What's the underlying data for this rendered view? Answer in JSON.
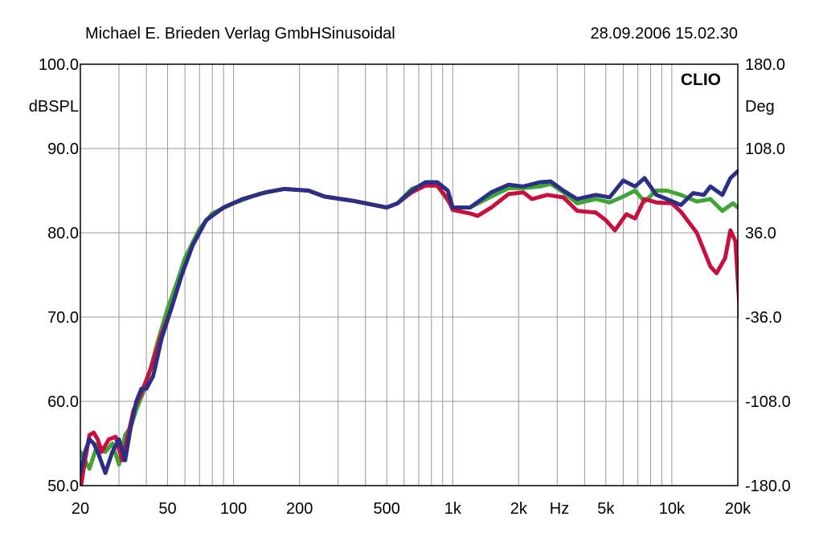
{
  "header": {
    "left": "Michael E. Brieden Verlag GmbHSinusoidal",
    "right": "28.09.2006 15.02.30"
  },
  "chart_data": {
    "type": "line",
    "brand_label": "CLIO",
    "x_scale": "log",
    "xlim": [
      20,
      20000
    ],
    "ylim": [
      50,
      100
    ],
    "y2lim": [
      -180,
      180
    ],
    "ylabel": "dBSPL",
    "y2label": "Deg",
    "xlabel": "Hz",
    "grid": true,
    "x_tick_labels": [
      {
        "v": 20,
        "t": "20"
      },
      {
        "v": 50,
        "t": "50"
      },
      {
        "v": 100,
        "t": "100"
      },
      {
        "v": 200,
        "t": "200"
      },
      {
        "v": 500,
        "t": "500"
      },
      {
        "v": 1000,
        "t": "1k"
      },
      {
        "v": 2000,
        "t": "2k"
      },
      {
        "v": 5000,
        "t": "5k"
      },
      {
        "v": 10000,
        "t": "10k"
      },
      {
        "v": 20000,
        "t": "20k"
      }
    ],
    "y_tick_labels": [
      {
        "v": 100,
        "t": "100.0"
      },
      {
        "v": 90,
        "t": "90.0"
      },
      {
        "v": 80,
        "t": "80.0"
      },
      {
        "v": 70,
        "t": "70.0"
      },
      {
        "v": 60,
        "t": "60.0"
      },
      {
        "v": 50,
        "t": "50.0"
      }
    ],
    "y2_tick_labels": [
      {
        "v": 180,
        "t": "180.0"
      },
      {
        "v": 108,
        "t": "108.0"
      },
      {
        "v": 36,
        "t": "36.0"
      },
      {
        "v": -36,
        "t": "-36.0"
      },
      {
        "v": -108,
        "t": "-108.0"
      },
      {
        "v": -180,
        "t": "-180.0"
      }
    ],
    "series": [
      {
        "color": "#3fa535",
        "points": [
          [
            20,
            54
          ],
          [
            22,
            52
          ],
          [
            24,
            55
          ],
          [
            26,
            54
          ],
          [
            28,
            55
          ],
          [
            30,
            52.5
          ],
          [
            32,
            56
          ],
          [
            34,
            57
          ],
          [
            36,
            59
          ],
          [
            40,
            62
          ],
          [
            45,
            67
          ],
          [
            50,
            71
          ],
          [
            55,
            74
          ],
          [
            60,
            77
          ],
          [
            70,
            80.5
          ],
          [
            80,
            82.3
          ],
          [
            100,
            83.5
          ],
          [
            130,
            84.6
          ],
          [
            170,
            85.2
          ],
          [
            220,
            85
          ],
          [
            260,
            84.3
          ],
          [
            350,
            83.8
          ],
          [
            500,
            83
          ],
          [
            560,
            83.5
          ],
          [
            650,
            85.2
          ],
          [
            750,
            85.8
          ],
          [
            850,
            85.6
          ],
          [
            1000,
            83
          ],
          [
            1200,
            83
          ],
          [
            1500,
            84.3
          ],
          [
            1800,
            85.3
          ],
          [
            2100,
            85.3
          ],
          [
            2500,
            85.5
          ],
          [
            2800,
            85.8
          ],
          [
            3200,
            84.8
          ],
          [
            3700,
            83.5
          ],
          [
            4500,
            84
          ],
          [
            5200,
            83.6
          ],
          [
            6000,
            84.3
          ],
          [
            6800,
            85
          ],
          [
            7500,
            83.7
          ],
          [
            8500,
            85
          ],
          [
            9500,
            85
          ],
          [
            11000,
            84.5
          ],
          [
            13000,
            83.7
          ],
          [
            15000,
            84
          ],
          [
            17000,
            82.6
          ],
          [
            19000,
            83.5
          ],
          [
            20000,
            83
          ]
        ]
      },
      {
        "color": "#c8103e",
        "points": [
          [
            20,
            49.5
          ],
          [
            21,
            53
          ],
          [
            22,
            56
          ],
          [
            23,
            56.3
          ],
          [
            24,
            55.5
          ],
          [
            25,
            54
          ],
          [
            27,
            55.5
          ],
          [
            29,
            55.8
          ],
          [
            31,
            53
          ],
          [
            33,
            56
          ],
          [
            35,
            59
          ],
          [
            38,
            61
          ],
          [
            42,
            64
          ],
          [
            47,
            68
          ],
          [
            52,
            71
          ],
          [
            58,
            75
          ],
          [
            65,
            78.5
          ],
          [
            75,
            81.5
          ],
          [
            90,
            83
          ],
          [
            110,
            84
          ],
          [
            140,
            84.8
          ],
          [
            170,
            85.2
          ],
          [
            220,
            85
          ],
          [
            260,
            84.3
          ],
          [
            350,
            83.8
          ],
          [
            500,
            83
          ],
          [
            560,
            83.5
          ],
          [
            650,
            84.8
          ],
          [
            750,
            85.6
          ],
          [
            850,
            85.6
          ],
          [
            950,
            84
          ],
          [
            1000,
            82.7
          ],
          [
            1200,
            82.3
          ],
          [
            1300,
            82
          ],
          [
            1500,
            83
          ],
          [
            1800,
            84.6
          ],
          [
            2100,
            84.8
          ],
          [
            2300,
            84
          ],
          [
            2700,
            84.5
          ],
          [
            3200,
            84.2
          ],
          [
            3700,
            82.6
          ],
          [
            4500,
            82.4
          ],
          [
            5000,
            81.5
          ],
          [
            5500,
            80.3
          ],
          [
            6200,
            82.2
          ],
          [
            6800,
            81.7
          ],
          [
            7500,
            84
          ],
          [
            8500,
            83.6
          ],
          [
            10000,
            83.5
          ],
          [
            11000,
            82.5
          ],
          [
            13000,
            80
          ],
          [
            15000,
            76
          ],
          [
            16000,
            75.2
          ],
          [
            17500,
            77
          ],
          [
            18500,
            80.3
          ],
          [
            19500,
            79
          ],
          [
            20500,
            70
          ],
          [
            21000,
            69
          ]
        ]
      },
      {
        "color": "#2b2f86",
        "points": [
          [
            20,
            51.5
          ],
          [
            21,
            54
          ],
          [
            22,
            55.5
          ],
          [
            23,
            55
          ],
          [
            24,
            54
          ],
          [
            26,
            51.5
          ],
          [
            28,
            54
          ],
          [
            30,
            55.5
          ],
          [
            32,
            53
          ],
          [
            34,
            57
          ],
          [
            36,
            60
          ],
          [
            38,
            61.5
          ],
          [
            40,
            61.5
          ],
          [
            43,
            63
          ],
          [
            47,
            67.5
          ],
          [
            52,
            71
          ],
          [
            58,
            75
          ],
          [
            65,
            78.5
          ],
          [
            75,
            81.5
          ],
          [
            90,
            83
          ],
          [
            110,
            84
          ],
          [
            140,
            84.8
          ],
          [
            170,
            85.2
          ],
          [
            220,
            85
          ],
          [
            260,
            84.3
          ],
          [
            350,
            83.8
          ],
          [
            500,
            83
          ],
          [
            560,
            83.5
          ],
          [
            650,
            85
          ],
          [
            750,
            86
          ],
          [
            850,
            86
          ],
          [
            950,
            85
          ],
          [
            1000,
            83
          ],
          [
            1200,
            83
          ],
          [
            1500,
            84.8
          ],
          [
            1800,
            85.7
          ],
          [
            2100,
            85.5
          ],
          [
            2500,
            86
          ],
          [
            2800,
            86.1
          ],
          [
            3200,
            85
          ],
          [
            3700,
            84
          ],
          [
            4500,
            84.5
          ],
          [
            5200,
            84.2
          ],
          [
            6000,
            86.2
          ],
          [
            6800,
            85.5
          ],
          [
            7500,
            86.5
          ],
          [
            8500,
            84.5
          ],
          [
            9500,
            84
          ],
          [
            11000,
            83.3
          ],
          [
            12500,
            84.7
          ],
          [
            14000,
            84.5
          ],
          [
            15000,
            85.5
          ],
          [
            17000,
            84.5
          ],
          [
            18500,
            86.5
          ],
          [
            20000,
            87.3
          ],
          [
            21000,
            87.5
          ]
        ]
      }
    ]
  }
}
